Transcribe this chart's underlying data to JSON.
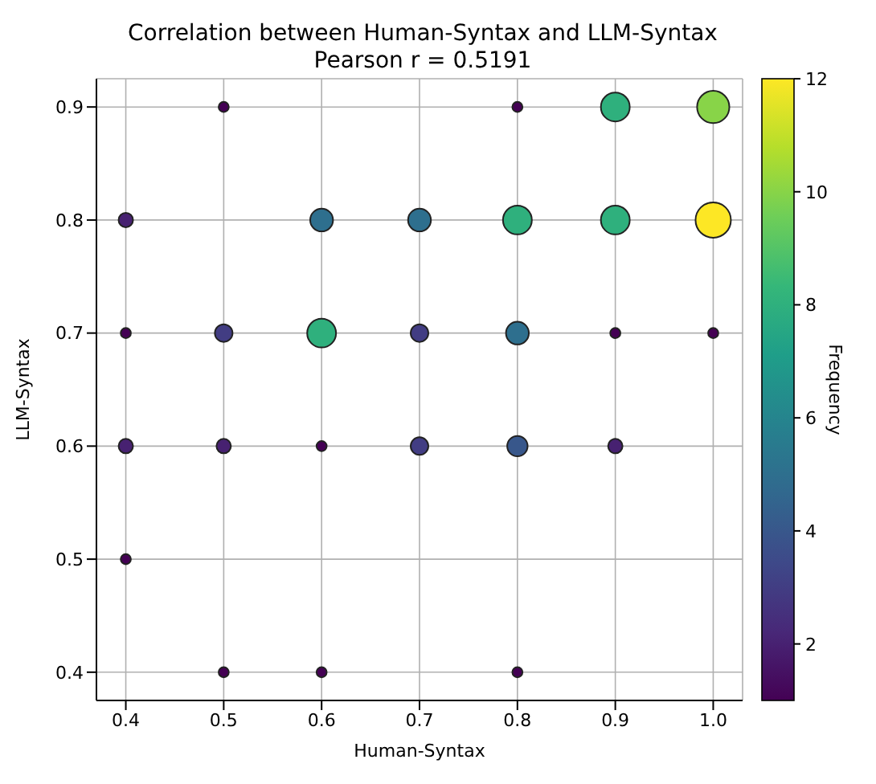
{
  "chart_data": {
    "type": "bubble",
    "title": "Correlation between Human-Syntax and LLM-Syntax",
    "subtitle": "Pearson r = 0.5191",
    "xlabel": "Human-Syntax",
    "ylabel": "LLM-Syntax",
    "clabel": "Frequency",
    "x": [
      0.4,
      0.4,
      0.4,
      0.4,
      0.5,
      0.5,
      0.5,
      0.5,
      0.6,
      0.6,
      0.6,
      0.6,
      0.7,
      0.7,
      0.7,
      0.8,
      0.8,
      0.8,
      0.8,
      0.8,
      0.9,
      0.9,
      0.9,
      0.9,
      1.0,
      1.0,
      1.0
    ],
    "values": [
      0.8,
      0.7,
      0.6,
      0.5,
      0.9,
      0.7,
      0.6,
      0.4,
      0.8,
      0.7,
      0.6,
      0.4,
      0.8,
      0.7,
      0.6,
      0.9,
      0.8,
      0.7,
      0.6,
      0.4,
      0.9,
      0.8,
      0.7,
      0.6,
      0.9,
      0.8,
      0.7
    ],
    "cvalues": [
      2,
      1,
      2,
      1,
      1,
      3,
      2,
      1,
      5,
      8,
      1,
      1,
      5,
      3,
      3,
      1,
      8,
      5,
      4,
      1,
      8,
      8,
      1,
      2,
      10,
      12,
      1
    ],
    "sizes": [
      0.167,
      0.083,
      0.167,
      0.083,
      0.083,
      0.25,
      0.167,
      0.083,
      0.417,
      0.667,
      0.083,
      0.083,
      0.417,
      0.25,
      0.25,
      0.083,
      0.667,
      0.417,
      0.333,
      0.083,
      0.667,
      0.667,
      0.083,
      0.167,
      0.833,
      1,
      0.083
    ],
    "xlim": [
      0.37,
      1.03
    ],
    "xticks": [
      0.4,
      0.5,
      0.6,
      0.7,
      0.8,
      0.9,
      {
        "value": 1,
        "label": "1.0"
      }
    ],
    "ylim": [
      0.375,
      0.925
    ],
    "yticks": [
      0.4,
      0.5,
      0.6,
      0.7,
      0.8,
      0.9
    ],
    "clim": [
      1,
      12
    ],
    "cticks": [
      2,
      4,
      6,
      8,
      10,
      12
    ],
    "grid": true,
    "marker": "circle"
  }
}
